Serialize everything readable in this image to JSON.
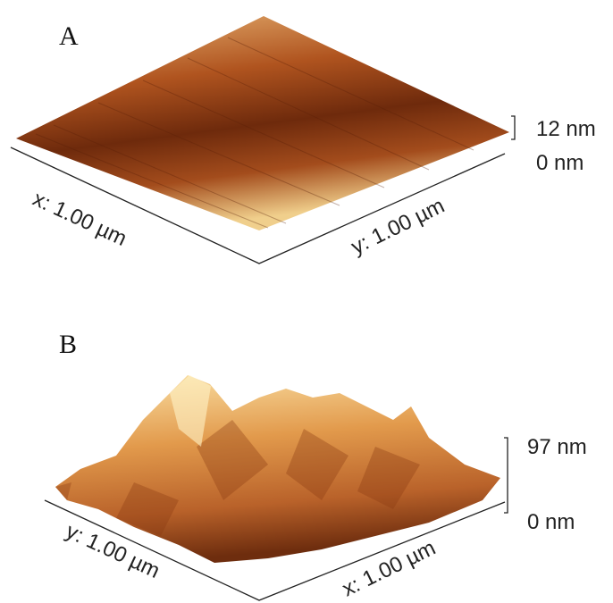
{
  "panels": [
    {
      "label": "A",
      "x_axis": "x: 1.00 µm",
      "y_axis": "y: 1.00 µm",
      "z_top": "12 nm",
      "z_bottom": "0 nm"
    },
    {
      "label": "B",
      "y_axis": "y: 1.00 µm",
      "x_axis": "x: 1.00 µm",
      "z_top": "97 nm",
      "z_bottom": "0 nm"
    }
  ]
}
